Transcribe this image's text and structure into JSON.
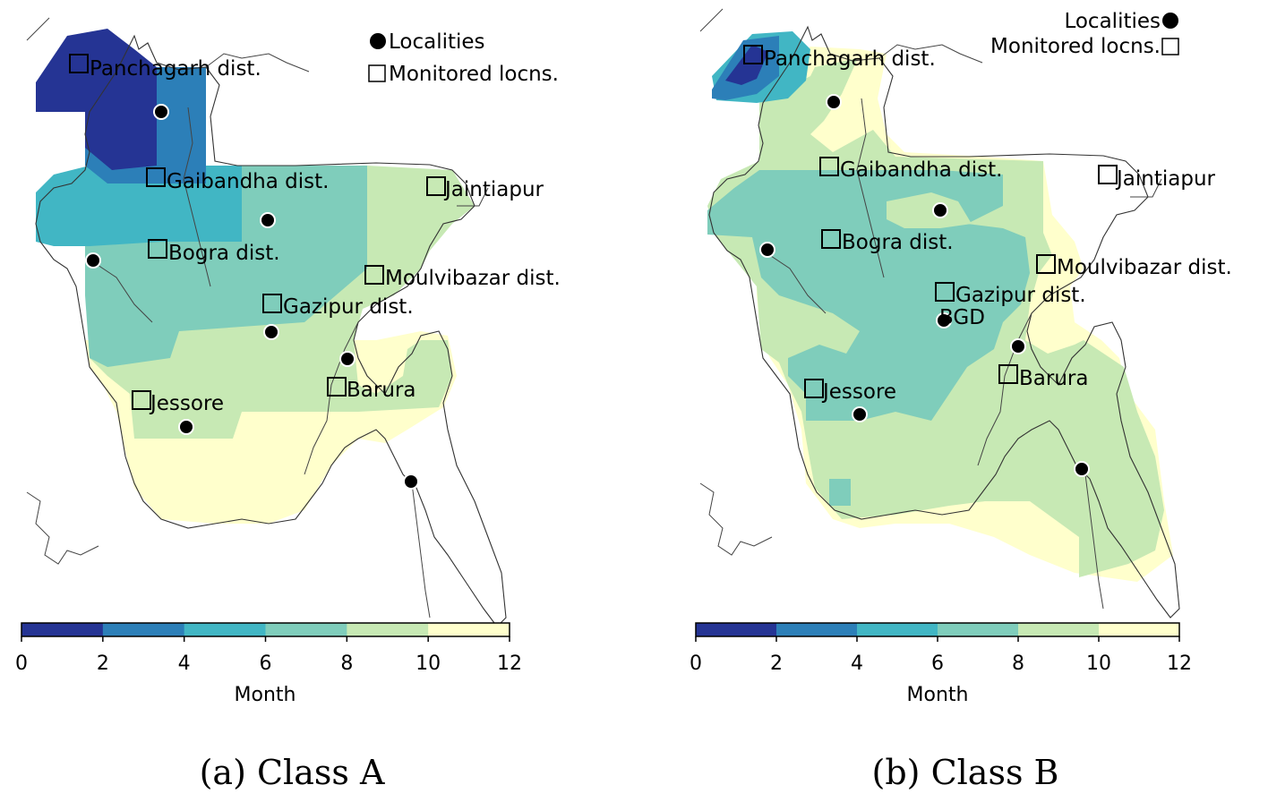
{
  "colors": {
    "level_0_2": "#253494",
    "level_2_4": "#2c7fb8",
    "level_4_6": "#41b6c4",
    "level_6_8": "#7fcdbb",
    "level_8_10": "#c7e9b4",
    "level_10_12": "#ffffcc",
    "locality_marker": "#000000",
    "monitored_marker": "#ffffff"
  },
  "icons": {
    "locality": "filled-circle",
    "monitored": "hollow-square"
  },
  "colorbar": {
    "ticks": [
      "0",
      "2",
      "4",
      "6",
      "8",
      "10",
      "12"
    ],
    "label": "Month"
  },
  "panels": [
    {
      "caption": "(a) Class A",
      "legend": {
        "localities": "Localities",
        "monitored": "Monitored locns."
      },
      "places": [
        {
          "name": "Panchagarh dist."
        },
        {
          "name": "Gaibandha dist."
        },
        {
          "name": "Jaintiapur"
        },
        {
          "name": "Bogra dist."
        },
        {
          "name": "Moulvibazar dist."
        },
        {
          "name": "Gazipur dist."
        },
        {
          "name": "Barura"
        },
        {
          "name": "Jessore"
        }
      ]
    },
    {
      "caption": "(b) Class B",
      "legend": {
        "localities": "Localities",
        "monitored": "Monitored locns."
      },
      "places": [
        {
          "name": "Panchagarh dist."
        },
        {
          "name": "Gaibandha dist."
        },
        {
          "name": "Jaintiapur"
        },
        {
          "name": "Bogra dist."
        },
        {
          "name": "Moulvibazar dist."
        },
        {
          "name": "Gazipur dist."
        },
        {
          "name": "BGD"
        },
        {
          "name": "Barura"
        },
        {
          "name": "Jessore"
        }
      ]
    }
  ]
}
